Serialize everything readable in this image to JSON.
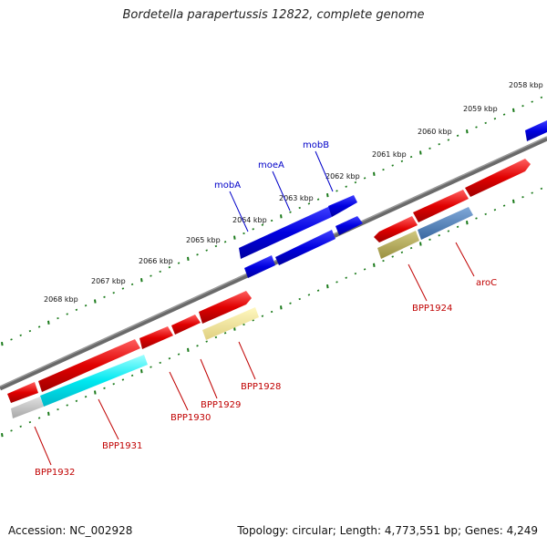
{
  "title": "Bordetella parapertussis 12822, complete genome",
  "footer": {
    "accession": "Accession: NC_002928",
    "summary": "Topology: circular; Length: 4,773,551 bp; Genes: 4,249"
  },
  "scale_ticks": [
    {
      "label": "2058 kbp"
    },
    {
      "label": "2059 kbp"
    },
    {
      "label": "2060 kbp"
    },
    {
      "label": "2061 kbp"
    },
    {
      "label": "2062 kbp"
    },
    {
      "label": "2063 kbp"
    },
    {
      "label": "2064 kbp"
    },
    {
      "label": "2065 kbp"
    },
    {
      "label": "2066 kbp"
    },
    {
      "label": "2067 kbp"
    },
    {
      "label": "2068 kbp"
    }
  ],
  "gene_labels": [
    {
      "name": "mobB",
      "color": "#0000c8"
    },
    {
      "name": "moeA",
      "color": "#0000c8"
    },
    {
      "name": "mobA",
      "color": "#0000c8"
    },
    {
      "name": "aroC",
      "color": "#c00000"
    },
    {
      "name": "BPP1924",
      "color": "#c00000"
    },
    {
      "name": "BPP1928",
      "color": "#c00000"
    },
    {
      "name": "BPP1929",
      "color": "#c00000"
    },
    {
      "name": "BPP1930",
      "color": "#c00000"
    },
    {
      "name": "BPP1931",
      "color": "#c00000"
    },
    {
      "name": "BPP1932",
      "color": "#c00000"
    }
  ],
  "colors": {
    "cds": "#e8000a",
    "gene": "#1010e0",
    "backbone": "#808080",
    "scale_dots": "#1a7a1a"
  }
}
